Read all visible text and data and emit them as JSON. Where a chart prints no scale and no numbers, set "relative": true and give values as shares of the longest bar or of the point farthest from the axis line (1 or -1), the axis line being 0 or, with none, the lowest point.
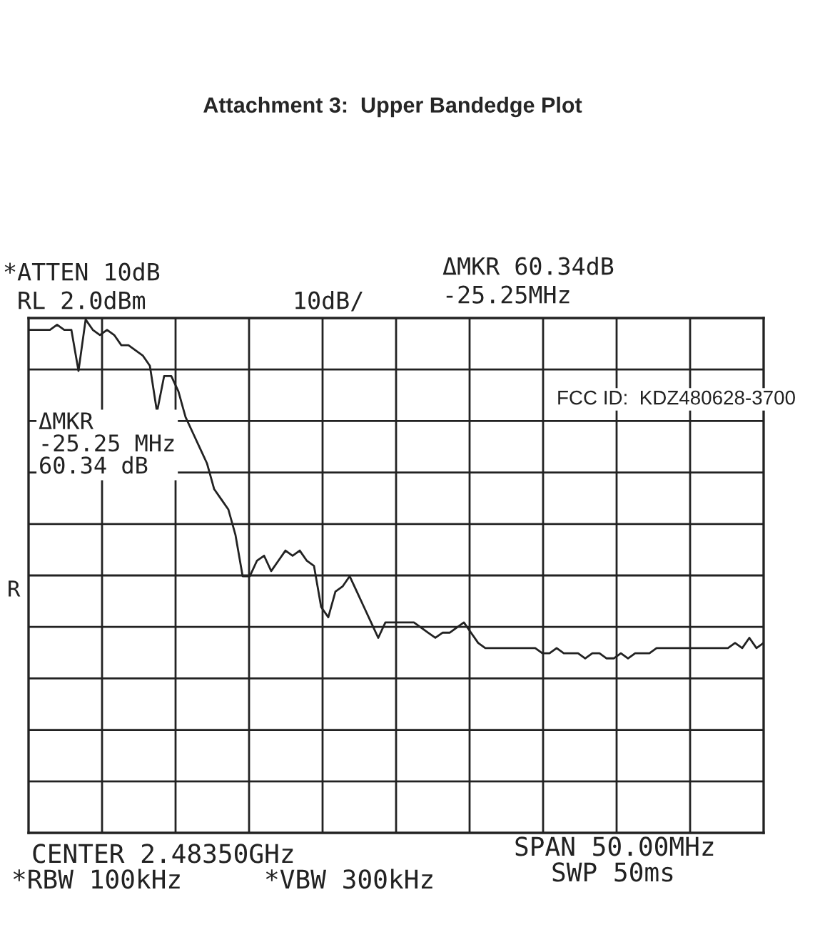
{
  "chart_data": {
    "type": "line",
    "title": "Attachment 3:  Upper Bandedge Plot",
    "relative": true,
    "grid": true,
    "legend": false,
    "categories": [
      null,
      null,
      null,
      null,
      null,
      null,
      null,
      null,
      null,
      null,
      null,
      null,
      null,
      null,
      null,
      null,
      null,
      null,
      null,
      null,
      null,
      null,
      null,
      null,
      null,
      null,
      null,
      null,
      null,
      null,
      null,
      null,
      null,
      null,
      null,
      null,
      null,
      null,
      null,
      null,
      null,
      null,
      null,
      null,
      null,
      null,
      null,
      null,
      null,
      null,
      null,
      null,
      null,
      null,
      null,
      null,
      null,
      null,
      null,
      null,
      null,
      null,
      null,
      null,
      null,
      null,
      null,
      null,
      null,
      null,
      null,
      null,
      null,
      null,
      null,
      null,
      null,
      null,
      null,
      null,
      null,
      null,
      null,
      null,
      null,
      null,
      null,
      null,
      null,
      null,
      null,
      null,
      null,
      null,
      null,
      null,
      null,
      null,
      null,
      null,
      null,
      null,
      null,
      null
    ],
    "series": [
      {
        "color": "#222222",
        "values": [
          0.98,
          0.98,
          0.98,
          0.98,
          0.99,
          0.98,
          0.98,
          0.9,
          1.0,
          0.98,
          0.97,
          0.98,
          0.97,
          0.95,
          0.95,
          0.94,
          0.93,
          0.91,
          0.82,
          0.89,
          0.89,
          0.86,
          0.81,
          0.78,
          0.75,
          0.72,
          0.67,
          0.65,
          0.63,
          0.58,
          0.5,
          0.5,
          0.53,
          0.54,
          0.51,
          0.53,
          0.55,
          0.54,
          0.55,
          0.53,
          0.52,
          0.44,
          0.42,
          0.47,
          0.48,
          0.5,
          0.47,
          0.44,
          0.41,
          0.38,
          0.41,
          0.41,
          0.41,
          0.41,
          0.41,
          0.4,
          0.39,
          0.38,
          0.39,
          0.39,
          0.4,
          0.41,
          0.39,
          0.37,
          0.36,
          0.36,
          0.36,
          0.36,
          0.36,
          0.36,
          0.36,
          0.36,
          0.35,
          0.35,
          0.36,
          0.35,
          0.35,
          0.35,
          0.34,
          0.35,
          0.35,
          0.34,
          0.34,
          0.35,
          0.34,
          0.35,
          0.35,
          0.35,
          0.36,
          0.36,
          0.36,
          0.36,
          0.36,
          0.36,
          0.36,
          0.36,
          0.36,
          0.36,
          0.36,
          0.37,
          0.36,
          0.38,
          0.36,
          0.37
        ]
      }
    ],
    "annotations": [
      "*ATTEN 10dB",
      "RL 2.0dBm",
      "10dB/",
      "ΔMKR 60.34dB",
      "-25.25MHz",
      "ΔMKR\n-25.25 MHz\n60.34 dB",
      "R",
      "FCC ID:  KDZ480628-3700",
      "CENTER 2.48350GHz",
      "*RBW 100kHz",
      "*VBW 300kHz",
      "SPAN 50.00MHz",
      "SWP 50ms"
    ]
  }
}
